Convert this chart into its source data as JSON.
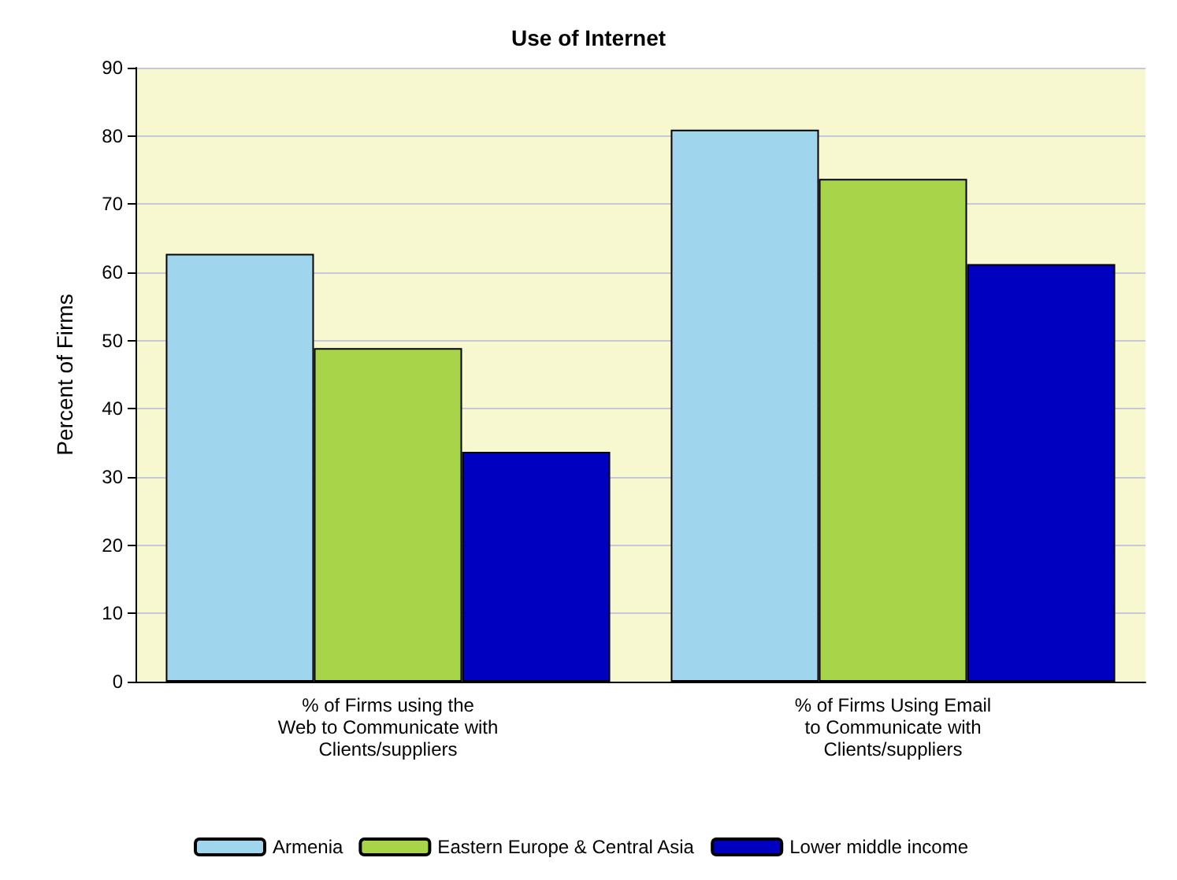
{
  "chart_data": {
    "type": "bar",
    "title": "Use of Internet",
    "ylabel": "Percent of Firms",
    "categories": [
      "% of Firms using the\nWeb to Communicate with\nClients/suppliers",
      "% of Firms Using Email\nto Communicate with\nClients/suppliers"
    ],
    "series": [
      {
        "name": "Armenia",
        "color": "#9fd6ee",
        "values": [
          62.7,
          80.9
        ]
      },
      {
        "name": "Eastern Europe & Central Asia",
        "color": "#a8d44a",
        "values": [
          48.9,
          73.7
        ]
      },
      {
        "name": "Lower middle income",
        "color": "#0000c0",
        "values": [
          33.7,
          61.2
        ]
      }
    ],
    "ylim": [
      0,
      90
    ],
    "yticks": [
      0,
      10,
      20,
      30,
      40,
      50,
      60,
      70,
      80,
      90
    ],
    "grid": "y",
    "legend": "bottom"
  }
}
